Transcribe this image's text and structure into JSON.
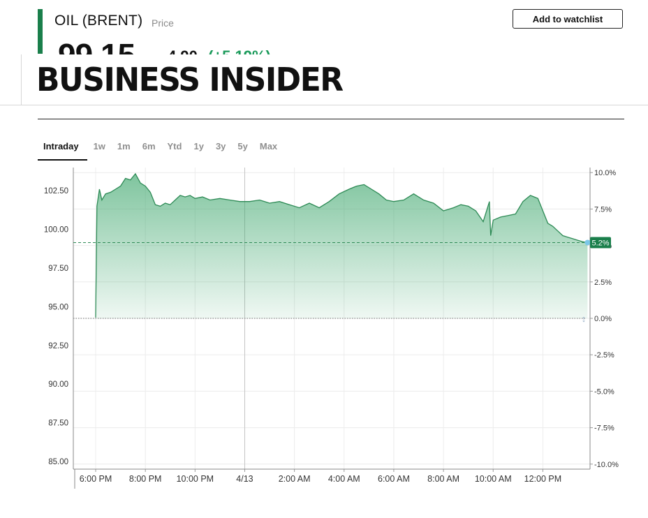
{
  "quote": {
    "title": "OIL (BRENT)",
    "price_label": "Price",
    "price": "99.15",
    "change": "4.90",
    "change_pct": "(+5.19%)",
    "watchlist_button": "Add to watchlist"
  },
  "header": {
    "logo": "BUSINESS INSIDER"
  },
  "tabs": [
    "Intraday",
    "1w",
    "1m",
    "6m",
    "Ytd",
    "1y",
    "3y",
    "5y",
    "Max"
  ],
  "active_tab": "Intraday",
  "colors": {
    "accent": "#1a7f4b",
    "line": "#2d8a55",
    "fill_top": "#3aa56a",
    "badge": "#1a7f4b"
  },
  "chart_data": {
    "type": "area",
    "y_left_ticks": [
      "102.50",
      "100.00",
      "97.50",
      "95.00",
      "92.50",
      "90.00",
      "87.50",
      "85.00"
    ],
    "y_left_values": [
      102.5,
      100,
      97.5,
      95,
      92.5,
      90,
      87.5,
      85
    ],
    "y_right_ticks": [
      "10.0%",
      "7.5%",
      "5.0%",
      "2.5%",
      "0.0%",
      "-2.5%",
      "-5.0%",
      "-7.5%",
      "-10.0%"
    ],
    "y_right_values": [
      10,
      7.5,
      5,
      2.5,
      0,
      -2.5,
      -5,
      -7.5,
      -10
    ],
    "x_ticks": [
      "6:00 PM",
      "8:00 PM",
      "10:00 PM",
      "4/13",
      "2:00 AM",
      "4:00 AM",
      "6:00 AM",
      "8:00 AM",
      "10:00 AM",
      "12:00 PM"
    ],
    "x_tick_hours": [
      18,
      20,
      22,
      24,
      26,
      28,
      30,
      32,
      34,
      36
    ],
    "ylim": [
      84.5,
      104
    ],
    "xlim": [
      17.1,
      37.9
    ],
    "baseline": 94.25,
    "current_value": 99.15,
    "current_badge": "5.2%",
    "grid": true,
    "series": [
      {
        "x": [
          18.0,
          18.05,
          18.15,
          18.25,
          18.4,
          18.6,
          18.8,
          19.0,
          19.2,
          19.4,
          19.6,
          19.8,
          20.0,
          20.2,
          20.4,
          20.6,
          20.8,
          21.0,
          21.2,
          21.4,
          21.6,
          21.8,
          22.0,
          22.3,
          22.6,
          23.0,
          23.4,
          23.8,
          24.2,
          24.6,
          25.0,
          25.4,
          25.8,
          26.2,
          26.6,
          27.0,
          27.4,
          27.8,
          28.2,
          28.5,
          28.8,
          29.1,
          29.4,
          29.7,
          30.0,
          30.4,
          30.8,
          31.2,
          31.6,
          32.0,
          32.4,
          32.7,
          33.0,
          33.3,
          33.6,
          33.85,
          33.9,
          34.0,
          34.3,
          34.6,
          34.9,
          35.2,
          35.5,
          35.8,
          36.0,
          36.2,
          36.4,
          36.6,
          36.8,
          37.0,
          37.2,
          37.4,
          37.6,
          37.8
        ],
        "y": [
          94.3,
          101.5,
          102.6,
          101.9,
          102.3,
          102.4,
          102.6,
          102.8,
          103.3,
          103.2,
          103.6,
          103.0,
          102.8,
          102.4,
          101.6,
          101.5,
          101.7,
          101.6,
          101.9,
          102.2,
          102.1,
          102.2,
          102.0,
          102.1,
          101.9,
          102.0,
          101.9,
          101.8,
          101.8,
          101.9,
          101.7,
          101.8,
          101.6,
          101.4,
          101.7,
          101.4,
          101.8,
          102.3,
          102.6,
          102.8,
          102.9,
          102.6,
          102.3,
          101.9,
          101.8,
          101.9,
          102.3,
          101.9,
          101.7,
          101.2,
          101.4,
          101.6,
          101.5,
          101.2,
          100.5,
          101.8,
          99.6,
          100.6,
          100.8,
          100.9,
          101.0,
          101.8,
          102.2,
          102.0,
          101.2,
          100.4,
          100.2,
          99.9,
          99.6,
          99.5,
          99.4,
          99.3,
          99.2,
          99.15
        ]
      }
    ]
  }
}
